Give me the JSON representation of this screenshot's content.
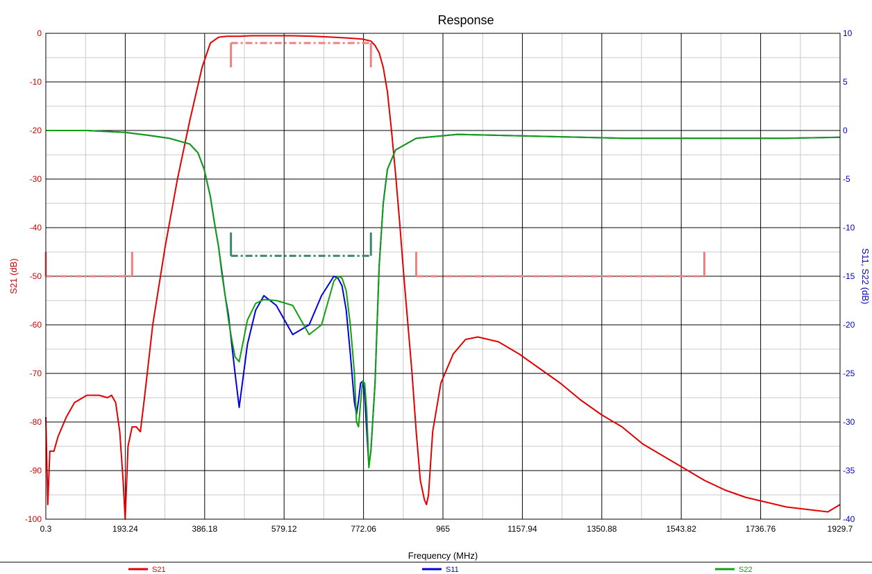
{
  "chart_data": {
    "type": "line",
    "title": "Response",
    "xlabel": "Frequency (MHz)",
    "ylabel_left": "S21 (dB)",
    "ylabel_right": "S11, S22 (dB)",
    "xlim": [
      0.3,
      1929.7
    ],
    "ylim_left": [
      -100,
      0
    ],
    "ylim_right": [
      -40,
      10
    ],
    "x_ticks": [
      "0.3",
      "193.24",
      "386.18",
      "579.12",
      "772.06",
      "965",
      "1157.94",
      "1350.88",
      "1543.82",
      "1736.76",
      "1929.7"
    ],
    "y_ticks_left": [
      "0",
      "-10",
      "-20",
      "-30",
      "-40",
      "-50",
      "-60",
      "-70",
      "-80",
      "-90",
      "-100"
    ],
    "y_ticks_right": [
      "10",
      "5",
      "0",
      "-5",
      "-10",
      "-15",
      "-20",
      "-25",
      "-30",
      "-35",
      "-40"
    ],
    "grid": true,
    "legend_placement": "bottom",
    "colors": {
      "S21": "#e00000",
      "S11": "#0000dd",
      "S22": "#10a010",
      "mask_s21": "#f08080",
      "mask_s11": "#3a8a6a"
    },
    "series": [
      {
        "name": "S21",
        "axis": "left",
        "x": [
          0.3,
          5,
          10,
          20,
          30,
          50,
          70,
          100,
          130,
          150,
          160,
          170,
          180,
          188,
          193,
          200,
          210,
          220,
          230,
          240,
          260,
          290,
          320,
          350,
          380,
          400,
          420,
          430,
          440,
          450,
          470,
          500,
          550,
          600,
          650,
          700,
          740,
          770,
          790,
          800,
          810,
          820,
          830,
          840,
          850,
          860,
          870,
          880,
          890,
          900,
          910,
          920,
          925,
          930,
          940,
          960,
          990,
          1020,
          1050,
          1100,
          1150,
          1200,
          1250,
          1300,
          1350,
          1400,
          1450,
          1500,
          1550,
          1600,
          1650,
          1700,
          1750,
          1800,
          1850,
          1900,
          1929.7
        ],
        "y": [
          -79,
          -97,
          -86,
          -86,
          -83,
          -79,
          -76,
          -74.5,
          -74.5,
          -75,
          -74.5,
          -76,
          -82,
          -92,
          -100,
          -85,
          -81,
          -81,
          -82,
          -75,
          -60,
          -44,
          -30,
          -18,
          -7,
          -2,
          -0.8,
          -0.7,
          -0.6,
          -0.6,
          -0.6,
          -0.5,
          -0.5,
          -0.5,
          -0.6,
          -0.8,
          -1.0,
          -1.2,
          -1.6,
          -2.5,
          -4,
          -7,
          -12,
          -20,
          -29,
          -39,
          -50,
          -60,
          -70,
          -82,
          -92,
          -96,
          -97,
          -95,
          -82,
          -72,
          -66,
          -63,
          -62.5,
          -63.5,
          -66,
          -69,
          -72,
          -75.5,
          -78.5,
          -81,
          -84.5,
          -87,
          -89.5,
          -92,
          -94,
          -95.5,
          -96.5,
          -97.5,
          -98,
          -98.5,
          -97
        ]
      },
      {
        "name": "S11",
        "axis": "right",
        "x": [
          0.3,
          100,
          193.24,
          250,
          300,
          350,
          370,
          385,
          400,
          410,
          420,
          428,
          436,
          444,
          452,
          460,
          470,
          490,
          510,
          530,
          560,
          600,
          640,
          670,
          700,
          710,
          720,
          730,
          740,
          750,
          755,
          760,
          765,
          770,
          775,
          780,
          785,
          790,
          800,
          810,
          820,
          830,
          850,
          900,
          1000,
          1200,
          1400,
          1600,
          1800,
          1929.7
        ],
        "y": [
          0,
          0,
          -0.2,
          -0.5,
          -0.8,
          -1.4,
          -2.3,
          -4,
          -6.8,
          -9.5,
          -12,
          -14.5,
          -17,
          -19,
          -22,
          -25,
          -28.5,
          -22,
          -18.5,
          -17,
          -18,
          -21,
          -20,
          -17,
          -15,
          -15.2,
          -16,
          -18.5,
          -23,
          -28,
          -29.2,
          -27.8,
          -26,
          -25.8,
          -27.2,
          -31,
          -34.5,
          -33,
          -26,
          -14,
          -7.5,
          -4,
          -2,
          -0.8,
          -0.4,
          -0.6,
          -0.8,
          -0.8,
          -0.8,
          -0.7
        ]
      },
      {
        "name": "S22",
        "axis": "right",
        "x": [
          0.3,
          100,
          193.24,
          250,
          300,
          350,
          370,
          385,
          400,
          410,
          420,
          428,
          436,
          444,
          452,
          460,
          470,
          490,
          510,
          530,
          560,
          600,
          640,
          670,
          700,
          710,
          720,
          730,
          740,
          750,
          755,
          760,
          765,
          770,
          775,
          780,
          785,
          790,
          800,
          810,
          820,
          830,
          850,
          900,
          1000,
          1200,
          1400,
          1600,
          1800,
          1929.7
        ],
        "y": [
          0,
          0,
          -0.2,
          -0.5,
          -0.8,
          -1.4,
          -2.3,
          -4,
          -6.8,
          -9.5,
          -12,
          -14.8,
          -17,
          -19.5,
          -21.5,
          -23.3,
          -23.8,
          -19.5,
          -17.8,
          -17.4,
          -17.5,
          -18,
          -21,
          -20,
          -15.5,
          -15,
          -15.2,
          -16.5,
          -20,
          -25,
          -30,
          -30.5,
          -28,
          -25.8,
          -26,
          -29,
          -34.7,
          -33,
          -26,
          -14,
          -7.5,
          -4,
          -2,
          -0.8,
          -0.4,
          -0.6,
          -0.8,
          -0.8,
          -0.8,
          -0.7
        ]
      }
    ],
    "masks": [
      {
        "axis": "left",
        "color_key": "mask_s21",
        "y": -2,
        "x": [
          450,
          790
        ],
        "x_end_ticks_to": -7
      },
      {
        "axis": "left",
        "color_key": "mask_s21",
        "y": -50,
        "x": [
          0.3,
          210
        ],
        "x_end_ticks_to": -45
      },
      {
        "axis": "left",
        "color_key": "mask_s21",
        "y": -50,
        "x": [
          900,
          1600
        ],
        "x_end_ticks_to": -45
      },
      {
        "axis": "right",
        "color_key": "mask_s11",
        "y": -12.9,
        "x": [
          450,
          790
        ],
        "x_end_ticks_to": -10.5
      }
    ]
  }
}
